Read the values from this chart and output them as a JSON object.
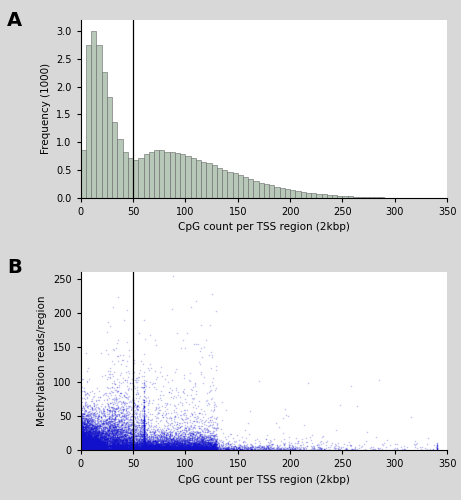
{
  "panel_A": {
    "label": "A",
    "xlabel": "CpG count per TSS region (2kbp)",
    "ylabel": "Frequency (1000)",
    "xlim": [
      0,
      350
    ],
    "ylim": [
      0,
      3.2
    ],
    "vline_x": 50,
    "yticks": [
      0.0,
      0.5,
      1.0,
      1.5,
      2.0,
      2.5,
      3.0
    ],
    "xticks": [
      0,
      50,
      100,
      150,
      200,
      250,
      300,
      350
    ],
    "bar_color": "#b8c8b8",
    "bar_edge_color": "#666666",
    "bin_starts": [
      0,
      5,
      10,
      15,
      20,
      25,
      30,
      35,
      40,
      45,
      50,
      55,
      60,
      65,
      70,
      75,
      80,
      85,
      90,
      95,
      100,
      105,
      110,
      115,
      120,
      125,
      130,
      135,
      140,
      145,
      150,
      155,
      160,
      165,
      170,
      175,
      180,
      185,
      190,
      195,
      200,
      205,
      210,
      215,
      220,
      225,
      230,
      235,
      240,
      245,
      250,
      255,
      260,
      265,
      270,
      275,
      280,
      285,
      290,
      295,
      300,
      305,
      310
    ],
    "histogram_values": [
      0.85,
      2.75,
      3.0,
      2.75,
      2.27,
      1.82,
      1.37,
      1.05,
      0.82,
      0.72,
      0.68,
      0.72,
      0.78,
      0.82,
      0.85,
      0.85,
      0.83,
      0.82,
      0.8,
      0.78,
      0.75,
      0.72,
      0.68,
      0.65,
      0.62,
      0.58,
      0.54,
      0.5,
      0.47,
      0.44,
      0.4,
      0.37,
      0.34,
      0.3,
      0.27,
      0.24,
      0.22,
      0.2,
      0.18,
      0.16,
      0.14,
      0.12,
      0.1,
      0.09,
      0.08,
      0.07,
      0.06,
      0.05,
      0.04,
      0.035,
      0.03,
      0.025,
      0.02,
      0.015,
      0.01,
      0.008,
      0.006,
      0.004,
      0.003,
      0.002,
      0.001,
      0.001,
      0.0
    ]
  },
  "panel_B": {
    "label": "B",
    "xlabel": "CpG count per TSS region (2kbp)",
    "ylabel": "Methylation reads/region",
    "xlim": [
      0,
      350
    ],
    "ylim": [
      0,
      260
    ],
    "vline_x": 50,
    "yticks": [
      0,
      50,
      100,
      150,
      200,
      250
    ],
    "xticks": [
      0,
      50,
      100,
      150,
      200,
      250,
      300,
      350
    ],
    "dot_color": "#1111cc",
    "dot_alpha": 0.25,
    "dot_size": 1.2,
    "n_points": 20000,
    "seed": 7
  },
  "background_color": "#d8d8d8",
  "panel_bg_color": "#ffffff",
  "label_fontsize": 14,
  "tick_fontsize": 7,
  "axis_fontsize": 7.5
}
